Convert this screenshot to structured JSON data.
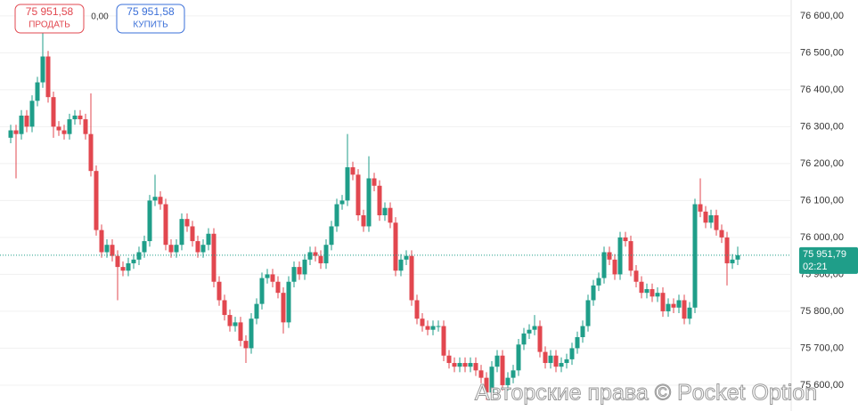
{
  "chart_data": {
    "type": "candlestick",
    "up_color": "#1f9e89",
    "down_color": "#e2474f",
    "grid": true,
    "ylim": [
      75530,
      76643
    ],
    "yticks": [
      {
        "value": 75600,
        "label": "75 600,00"
      },
      {
        "value": 75700,
        "label": "75 700,00"
      },
      {
        "value": 75800,
        "label": "75 800,00"
      },
      {
        "value": 75900,
        "label": "75 900,00"
      },
      {
        "value": 76000,
        "label": "76 000,00"
      },
      {
        "value": 76100,
        "label": "76 100,00"
      },
      {
        "value": 76200,
        "label": "76 200,00"
      },
      {
        "value": 76300,
        "label": "76 300,00"
      },
      {
        "value": 76400,
        "label": "76 400,00"
      },
      {
        "value": 76500,
        "label": "76 500,00"
      },
      {
        "value": 76600,
        "label": "76 600,00"
      }
    ],
    "open": [
      76270,
      76290,
      76280,
      76330,
      76300,
      76370,
      76420,
      76490,
      76380,
      76300,
      76290,
      76280,
      76320,
      76330,
      76320,
      76280,
      76180,
      76020,
      75960,
      75980,
      75950,
      75920,
      75910,
      75930,
      75940,
      75960,
      75990,
      76100,
      76110,
      76090,
      75980,
      75960,
      75980,
      76050,
      76030,
      75990,
      75960,
      75980,
      76010,
      75880,
      75830,
      75790,
      75760,
      75770,
      75720,
      75700,
      75780,
      75820,
      75890,
      75900,
      75880,
      75850,
      75770,
      75880,
      75920,
      75900,
      75940,
      75960,
      75950,
      75930,
      75980,
      76030,
      76090,
      76100,
      76190,
      76170,
      76060,
      76030,
      76160,
      76140,
      76060,
      76080,
      76040,
      75910,
      75940,
      75950,
      75830,
      75780,
      75760,
      75750,
      75760,
      75760,
      75680,
      75660,
      75650,
      75660,
      75650,
      75660,
      75640,
      75620,
      75580,
      75650,
      75680,
      75600,
      75620,
      75640,
      75710,
      75740,
      75750,
      75760,
      75690,
      75660,
      75680,
      75650,
      75660,
      75670,
      75700,
      75730,
      75760,
      75830,
      75870,
      75890,
      75960,
      75940,
      75900,
      76000,
      75990,
      75910,
      75880,
      75850,
      75860,
      75840,
      75850,
      75800,
      75820,
      75810,
      75830,
      75780,
      75810,
      76090,
      76070,
      76040,
      76060,
      76020,
      76000,
      75930,
      75940
    ],
    "high": [
      76305,
      76305,
      76345,
      76345,
      76385,
      76435,
      76560,
      76505,
      76395,
      76315,
      76305,
      76335,
      76345,
      76345,
      76335,
      76390,
      76195,
      76035,
      75995,
      75995,
      75965,
      75935,
      75945,
      75955,
      75975,
      76005,
      76115,
      76170,
      76125,
      76105,
      75995,
      75995,
      76065,
      76065,
      76045,
      76005,
      75995,
      76025,
      76025,
      75895,
      75845,
      75805,
      75785,
      75785,
      75735,
      75795,
      75835,
      75905,
      75915,
      75915,
      75895,
      75865,
      75895,
      75935,
      75935,
      75955,
      75975,
      75975,
      75965,
      75995,
      76045,
      76105,
      76115,
      76280,
      76205,
      76185,
      76075,
      76220,
      76175,
      76155,
      76095,
      76095,
      76055,
      75955,
      75965,
      75965,
      75845,
      75795,
      75775,
      75775,
      75775,
      75775,
      75695,
      75675,
      75675,
      75675,
      75675,
      75675,
      75655,
      75635,
      75665,
      75695,
      75695,
      75635,
      75655,
      75725,
      75755,
      75765,
      75790,
      75775,
      75705,
      75695,
      75695,
      75675,
      75685,
      75715,
      75745,
      75775,
      75845,
      75885,
      75905,
      75975,
      75975,
      75955,
      76015,
      76015,
      76005,
      75925,
      75895,
      75875,
      75875,
      75865,
      75865,
      75835,
      75835,
      75845,
      75845,
      75825,
      76105,
      76160,
      76085,
      76075,
      76075,
      76035,
      76015,
      75955,
      75975
    ],
    "low": [
      76255,
      76160,
      76265,
      76285,
      76285,
      76355,
      76405,
      76365,
      76270,
      76275,
      76265,
      76265,
      76305,
      76305,
      76265,
      76165,
      76005,
      75945,
      75945,
      75935,
      75830,
      75895,
      75895,
      75915,
      75925,
      75945,
      75975,
      76085,
      76075,
      75965,
      75945,
      75945,
      75965,
      76015,
      75975,
      75945,
      75945,
      75965,
      75865,
      75815,
      75775,
      75745,
      75745,
      75705,
      75660,
      75685,
      75765,
      75805,
      75875,
      75865,
      75835,
      75740,
      75755,
      75865,
      75885,
      75885,
      75925,
      75935,
      75915,
      75915,
      75965,
      76015,
      76075,
      76085,
      76155,
      76045,
      76015,
      76015,
      76125,
      76045,
      76045,
      76025,
      75895,
      75895,
      75925,
      75815,
      75765,
      75745,
      75735,
      75735,
      75745,
      75665,
      75645,
      75635,
      75635,
      75635,
      75635,
      75625,
      75605,
      75560,
      75565,
      75635,
      75585,
      75585,
      75605,
      75625,
      75695,
      75725,
      75735,
      75675,
      75645,
      75645,
      75635,
      75635,
      75645,
      75655,
      75685,
      75715,
      75745,
      75815,
      75855,
      75875,
      75925,
      75885,
      75885,
      75975,
      75895,
      75865,
      75835,
      75835,
      75825,
      75825,
      75785,
      75785,
      75795,
      75795,
      75765,
      75765,
      75795,
      76055,
      76025,
      76025,
      76005,
      75985,
      75870,
      75915,
      75925
    ],
    "close": [
      76290,
      76280,
      76330,
      76300,
      76370,
      76420,
      76490,
      76380,
      76300,
      76290,
      76280,
      76320,
      76330,
      76320,
      76280,
      76180,
      76020,
      75960,
      75980,
      75950,
      75920,
      75910,
      75930,
      75940,
      75960,
      75990,
      76100,
      76110,
      76090,
      75980,
      75960,
      75980,
      76050,
      76030,
      75990,
      75960,
      75980,
      76010,
      75880,
      75830,
      75790,
      75760,
      75770,
      75720,
      75700,
      75780,
      75820,
      75890,
      75900,
      75880,
      75850,
      75770,
      75880,
      75920,
      75900,
      75940,
      75960,
      75950,
      75930,
      75980,
      76030,
      76090,
      76100,
      76190,
      76170,
      76060,
      76030,
      76160,
      76140,
      76060,
      76080,
      76040,
      75910,
      75940,
      75950,
      75830,
      75780,
      75760,
      75750,
      75760,
      75760,
      75680,
      75660,
      75650,
      75660,
      75650,
      75660,
      75640,
      75620,
      75580,
      75650,
      75680,
      75600,
      75620,
      75640,
      75710,
      75740,
      75750,
      75760,
      75690,
      75660,
      75680,
      75650,
      75660,
      75670,
      75700,
      75730,
      75760,
      75830,
      75870,
      75890,
      75960,
      75940,
      75900,
      76000,
      75990,
      75910,
      75880,
      75850,
      75860,
      75840,
      75850,
      75800,
      75820,
      75810,
      75830,
      75780,
      75810,
      76090,
      76070,
      76040,
      76060,
      76020,
      76000,
      75930,
      75940,
      75952
    ],
    "current_price": {
      "value": 75951.79,
      "label": "75 951,79"
    },
    "timer": "02:21"
  },
  "trade_panel": {
    "sell_price": "75 951,58",
    "sell_label": "ПРОДАТЬ",
    "spread": "0,00",
    "buy_price": "75 951,58",
    "buy_label": "КУПИТЬ"
  },
  "watermark": "Авторские права © Pocket Option"
}
